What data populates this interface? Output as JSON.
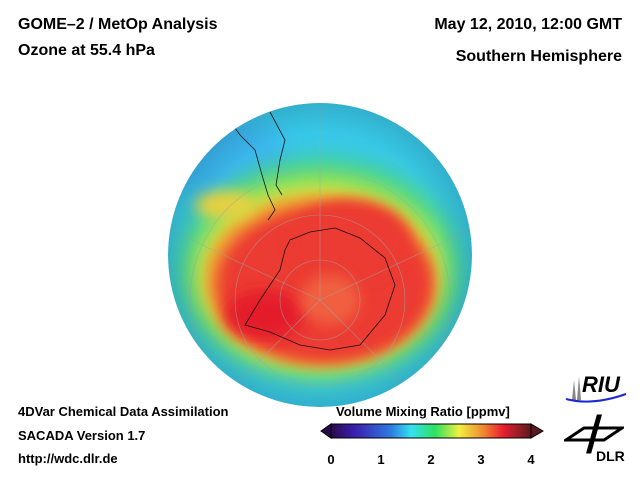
{
  "header": {
    "title": "GOME–2 / MetOp Analysis",
    "subtitle": "Ozone at 55.4 hPa",
    "datetime": "May 12, 2010, 12:00 GMT",
    "region": "Southern Hemisphere"
  },
  "footer": {
    "line1": "4DVar Chemical Data Assimilation",
    "line2": "SACADA Version 1.7",
    "line3": "http://wdc.dlr.de"
  },
  "colorbar": {
    "title": "Volume Mixing Ratio [ppmv]",
    "ticks": [
      "0",
      "1",
      "2",
      "3",
      "4"
    ],
    "range": [
      0,
      4
    ],
    "colors": [
      "#2a0a4a",
      "#3a1fb0",
      "#2f7ae0",
      "#35e0f0",
      "#2ee060",
      "#f0f040",
      "#f08a30",
      "#e81e30",
      "#5a1a20"
    ]
  },
  "logos": {
    "riu": "RIU",
    "dlr": "DLR"
  }
}
